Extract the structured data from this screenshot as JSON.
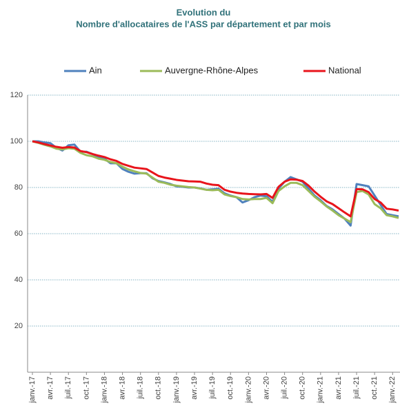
{
  "chart_data": {
    "type": "line",
    "title": "Evolution du",
    "subtitle": "Nombre d'allocataires de l'ASS par département et par mois",
    "legend": "top",
    "grid": true,
    "ylim": [
      0,
      120
    ],
    "yticks": [
      20,
      40,
      60,
      80,
      100,
      120
    ],
    "categories": [
      "janv.-17",
      null,
      null,
      "avr.-17",
      null,
      null,
      "juil.-17",
      null,
      null,
      "oct.-17",
      null,
      null,
      "janv.-18",
      null,
      null,
      "avr.-18",
      null,
      null,
      "juil.-18",
      null,
      null,
      "oct.-18",
      null,
      null,
      "janv.-19",
      null,
      null,
      "avr.-19",
      null,
      null,
      "juil.-19",
      null,
      null,
      "oct.-19",
      null,
      null,
      "janv.-20",
      null,
      null,
      "avr.-20",
      null,
      null,
      "juil.-20",
      null,
      null,
      "oct.-20",
      null,
      null,
      "janv.-21",
      null,
      null,
      "avr.-21",
      null,
      null,
      "juil.-21",
      null,
      null,
      "oct.-21",
      null,
      null,
      "janv.-22",
      null
    ],
    "series": [
      {
        "name": "Ain",
        "color": "#4f81bd",
        "values": [
          100,
          100,
          99.5,
          99.2,
          97.2,
          96.0,
          98.3,
          98.6,
          95.5,
          95.5,
          94.5,
          93.2,
          92.5,
          90.5,
          90.5,
          88.0,
          86.8,
          86.0,
          86.2,
          86.2,
          84.0,
          82.8,
          82.2,
          81.5,
          80.5,
          80.3,
          80.0,
          80.0,
          79.6,
          79.0,
          79.2,
          79.5,
          77.5,
          76.5,
          75.8,
          73.5,
          74.5,
          75.8,
          76.5,
          76.2,
          73.8,
          79.5,
          82.5,
          84.5,
          83.5,
          82.5,
          79.5,
          76.5,
          74.5,
          72.0,
          70.5,
          68.5,
          66.5,
          63.5,
          81.5,
          81.0,
          80.5,
          76.5,
          72.5,
          68.5,
          68.0,
          67.5
        ]
      },
      {
        "name": "Auvergne-Rhône-Alpes",
        "color": "#9bbb59",
        "values": [
          100,
          99.3,
          98.5,
          97.8,
          96.8,
          96.5,
          97.0,
          96.8,
          95.0,
          94.0,
          93.5,
          92.5,
          92.0,
          91.0,
          90.5,
          89.0,
          87.8,
          87.0,
          86.3,
          86.0,
          84.3,
          82.5,
          82.0,
          81.2,
          80.8,
          80.5,
          80.2,
          80.0,
          79.5,
          79.0,
          78.8,
          79.0,
          77.0,
          76.3,
          75.8,
          75.0,
          74.8,
          75.0,
          75.0,
          75.5,
          73.2,
          78.5,
          80.5,
          82.0,
          82.0,
          81.0,
          78.5,
          76.0,
          74.0,
          71.8,
          70.0,
          68.0,
          66.5,
          65.0,
          78.0,
          78.5,
          77.0,
          72.8,
          71.0,
          68.0,
          67.5,
          66.8
        ]
      },
      {
        "name": "National",
        "color": "#e8141b",
        "values": [
          100,
          99.5,
          98.8,
          98.2,
          97.6,
          97.2,
          97.5,
          97.3,
          95.8,
          95.3,
          94.5,
          93.8,
          93.2,
          92.2,
          91.5,
          90.2,
          89.4,
          88.6,
          88.3,
          88.0,
          86.5,
          85.0,
          84.3,
          83.8,
          83.3,
          83.0,
          82.7,
          82.6,
          82.5,
          81.7,
          81.2,
          81.0,
          79.0,
          78.2,
          77.7,
          77.4,
          77.2,
          77.1,
          77.0,
          77.2,
          75.5,
          80.3,
          82.5,
          83.5,
          83.4,
          82.8,
          80.8,
          78.2,
          76.0,
          74.0,
          72.8,
          71.0,
          69.2,
          67.5,
          79.3,
          79.2,
          78.0,
          75.0,
          73.5,
          70.8,
          70.5,
          70.0
        ]
      }
    ]
  }
}
